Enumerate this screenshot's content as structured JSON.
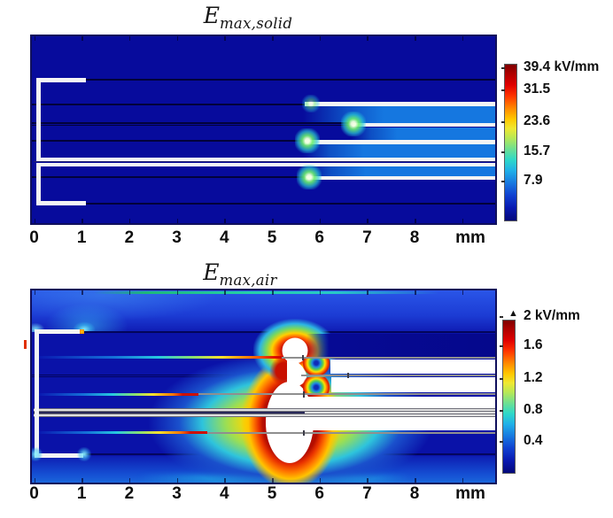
{
  "titles": {
    "top_main": "E",
    "top_sub": "max,solid",
    "bottom_main": "E",
    "bottom_sub": "max,air"
  },
  "x_axis": {
    "ticks": [
      "0",
      "1",
      "2",
      "3",
      "4",
      "5",
      "6",
      "7",
      "8"
    ],
    "unit": "mm"
  },
  "colorbar_top": {
    "labels": [
      "39.4 kV/mm",
      "31.5",
      "23.6",
      "15.7",
      "7.9"
    ]
  },
  "colorbar_bottom": {
    "labels": [
      "2 kV/mm",
      "1.6",
      "1.2",
      "0.8",
      "0.4"
    ],
    "overflow_marker": "▲"
  },
  "colors": {
    "solid_bg": "#070b9c",
    "stress_band": "#1577e0",
    "air_bg": "#0a12a8",
    "conductor": "#f4f4f4",
    "hot_red": "#c00000",
    "cold_blue": "#04087a"
  },
  "chart_data": [
    {
      "type": "heatmap",
      "title": "E_max,solid",
      "xlabel_unit": "mm",
      "x_ticks": [
        0,
        1,
        2,
        3,
        4,
        5,
        6,
        7,
        8
      ],
      "x_range_mm": [
        0,
        9.7
      ],
      "colorbar": {
        "colormap": "jet",
        "unit": "kV/mm",
        "tick_values": [
          39.4,
          31.5,
          23.6,
          15.7,
          7.9
        ],
        "max": 39.4,
        "min": 0
      },
      "features": [
        "uniform dark-blue low-field background (~2-4 kV/mm)",
        "four light-blue high-stress insulation bands (~8-10 kV/mm) between energized conductor plates from x≈5.7 mm to the right edge",
        "white conductor traces: two C-shaped bracket electrodes at left (x≈0-1.1 mm), two full-width horizontal plates, and plates starting at x≈5.7, 5.7 and 6.7 mm",
        "bright green-cyan field-enhancement hot spots at conductor plate tips near x≈5.7 and 6.7 mm"
      ]
    },
    {
      "type": "heatmap",
      "title": "E_max,air",
      "xlabel_unit": "mm",
      "x_ticks": [
        0,
        1,
        2,
        3,
        4,
        5,
        6,
        7,
        8
      ],
      "x_range_mm": [
        0,
        9.7
      ],
      "colorbar": {
        "colormap": "jet",
        "unit": "kV/mm",
        "tick_values": [
          2,
          1.6,
          1.2,
          0.8,
          0.4
        ],
        "max": 2,
        "min": 0,
        "overflow_indicator": "triangle marker: values above 2 kV/mm clipped (shown white)"
      },
      "features": [
        "air field plotted only in air domains; solid insulation bands between plates masked white",
        "saturated (>2 kV/mm) balloon-shaped white region around conductor tips at x≈5.2-6.0 mm surrounded by red-orange-yellow-green-cyan rainbow rings",
        "two local field minima (blue bull's-eye spots) in the air gaps at x≈5.9 mm",
        "field along conductor edge lines rises from blue (~0.2 kV/mm) near x≈0.2 mm through cyan and yellow to red (~2 kV/mm) approaching the tips",
        "cyan corona glow at bracket electrode corners (x≈0.1 and 1.1 mm); small orange hot spot at upper bracket arm tip"
      ]
    }
  ]
}
